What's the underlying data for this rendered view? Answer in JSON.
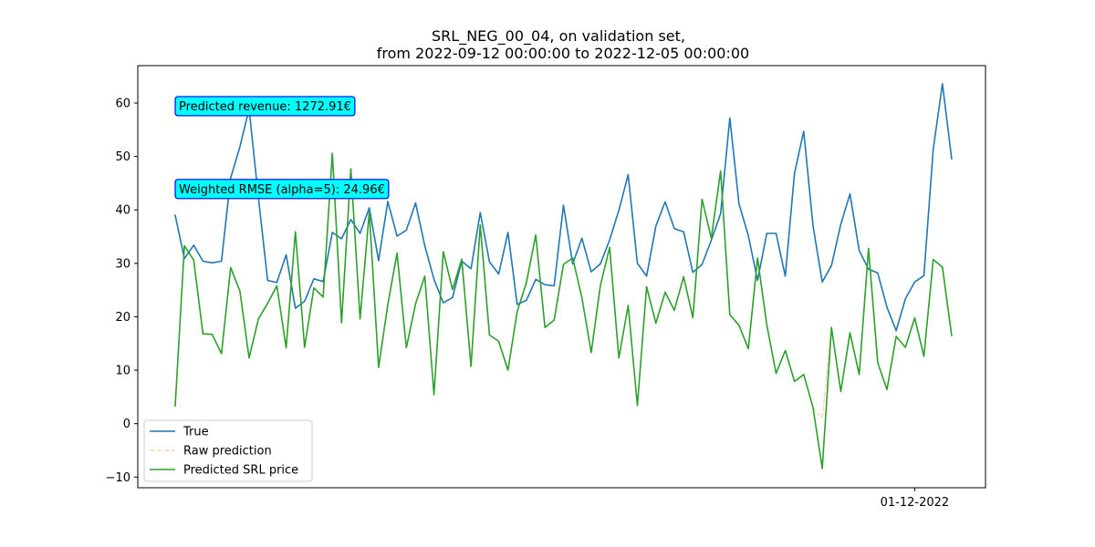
{
  "chart_data": {
    "type": "line",
    "title_line1": "SRL_NEG_00_04, on validation set,",
    "title_line2": "from 2022-09-12 00:00:00 to 2022-12-05 00:00:00",
    "xlabel": "",
    "ylabel": "",
    "ylim": [
      -12,
      67
    ],
    "yticks": [
      -10,
      0,
      10,
      20,
      30,
      40,
      50,
      60
    ],
    "x_start": "2022-09-12",
    "xticks": [
      {
        "date": "2022-12-01",
        "label": "01-12-2022"
      }
    ],
    "grid": false,
    "legend_position": "lower-left",
    "series": [
      {
        "name": "True",
        "color": "#1f77b4",
        "style": "solid",
        "values": [
          39.0,
          30.9,
          33.4,
          30.4,
          30.1,
          30.4,
          46.0,
          51.8,
          58.9,
          42.3,
          26.8,
          26.4,
          31.6,
          21.6,
          22.9,
          27.1,
          26.6,
          35.8,
          34.6,
          38.2,
          35.6,
          40.4,
          30.5,
          41.6,
          35.1,
          36.2,
          41.3,
          33.3,
          27.0,
          22.6,
          23.6,
          30.4,
          29.0,
          39.5,
          30.3,
          28.0,
          35.8,
          22.3,
          23.1,
          27.0,
          26.0,
          25.8,
          40.9,
          29.9,
          34.7,
          28.4,
          29.9,
          34.4,
          39.9,
          46.6,
          30.0,
          27.6,
          37.0,
          41.5,
          36.5,
          35.9,
          28.3,
          29.8,
          34.3,
          39.3,
          57.2,
          41.1,
          35.2,
          26.8,
          35.6,
          35.6,
          27.6,
          46.9,
          54.7,
          37.0,
          26.5,
          29.6,
          37.3,
          43.0,
          32.4,
          28.9,
          28.2,
          21.8,
          17.4,
          23.4,
          26.5,
          27.7,
          51.3,
          63.6,
          49.6
        ]
      },
      {
        "name": "Raw prediction",
        "color": "#ffbb78",
        "style": "dashed",
        "values": [
          3.3,
          33.3,
          30.6,
          16.8,
          16.7,
          13.1,
          29.2,
          24.8,
          12.3,
          19.6,
          22.5,
          25.8,
          14.2,
          35.9,
          14.3,
          25.4,
          23.7,
          50.6,
          18.9,
          47.7,
          19.6,
          39.6,
          10.5,
          22.3,
          31.9,
          14.2,
          22.4,
          27.6,
          5.4,
          32.2,
          25.1,
          30.8,
          10.7,
          37.2,
          16.6,
          15.4,
          10.0,
          21.0,
          26.4,
          35.3,
          18.0,
          19.4,
          29.8,
          31.0,
          23.6,
          13.3,
          25.9,
          33.0,
          12.3,
          22.1,
          3.4,
          25.6,
          18.8,
          24.6,
          21.2,
          27.5,
          19.8,
          42.0,
          34.7,
          47.3,
          20.4,
          18.4,
          14.0,
          31.0,
          18.5,
          9.4,
          13.7,
          7.9,
          9.2,
          3.0,
          1.0,
          18.0,
          6.0,
          17.0,
          9.2,
          32.8,
          11.4,
          6.4,
          16.3,
          14.3,
          19.8,
          12.6,
          30.7,
          29.3,
          16.5
        ]
      },
      {
        "name": "Predicted SRL price",
        "color": "#2ca02c",
        "style": "solid",
        "values": [
          3.3,
          33.3,
          30.6,
          16.8,
          16.7,
          13.1,
          29.2,
          24.8,
          12.3,
          19.6,
          22.5,
          25.8,
          14.2,
          35.9,
          14.3,
          25.4,
          23.7,
          50.6,
          18.9,
          47.7,
          19.6,
          39.6,
          10.5,
          22.3,
          31.9,
          14.2,
          22.4,
          27.6,
          5.4,
          32.2,
          25.1,
          30.8,
          10.7,
          37.2,
          16.6,
          15.4,
          10.0,
          21.0,
          26.4,
          35.3,
          18.0,
          19.4,
          29.8,
          31.0,
          23.6,
          13.3,
          25.9,
          33.0,
          12.3,
          22.1,
          3.4,
          25.6,
          18.8,
          24.6,
          21.2,
          27.5,
          19.8,
          42.0,
          34.7,
          47.3,
          20.4,
          18.4,
          14.0,
          31.0,
          18.5,
          9.4,
          13.7,
          7.9,
          9.2,
          3.0,
          -8.4,
          18.0,
          6.0,
          17.0,
          9.2,
          32.8,
          11.4,
          6.4,
          16.3,
          14.3,
          19.8,
          12.6,
          30.7,
          29.3,
          16.5
        ]
      }
    ],
    "annotations": [
      {
        "text": "Predicted revenue: 1272.91€",
        "x": "2022-09-12",
        "y": 59.5,
        "bg": "#00ffff",
        "border": "#0000ff"
      },
      {
        "text": "Weighted RMSE (alpha=5): 24.96€",
        "x": "2022-09-12",
        "y": 44.0,
        "bg": "#00ffff",
        "border": "#0000ff"
      }
    ]
  }
}
